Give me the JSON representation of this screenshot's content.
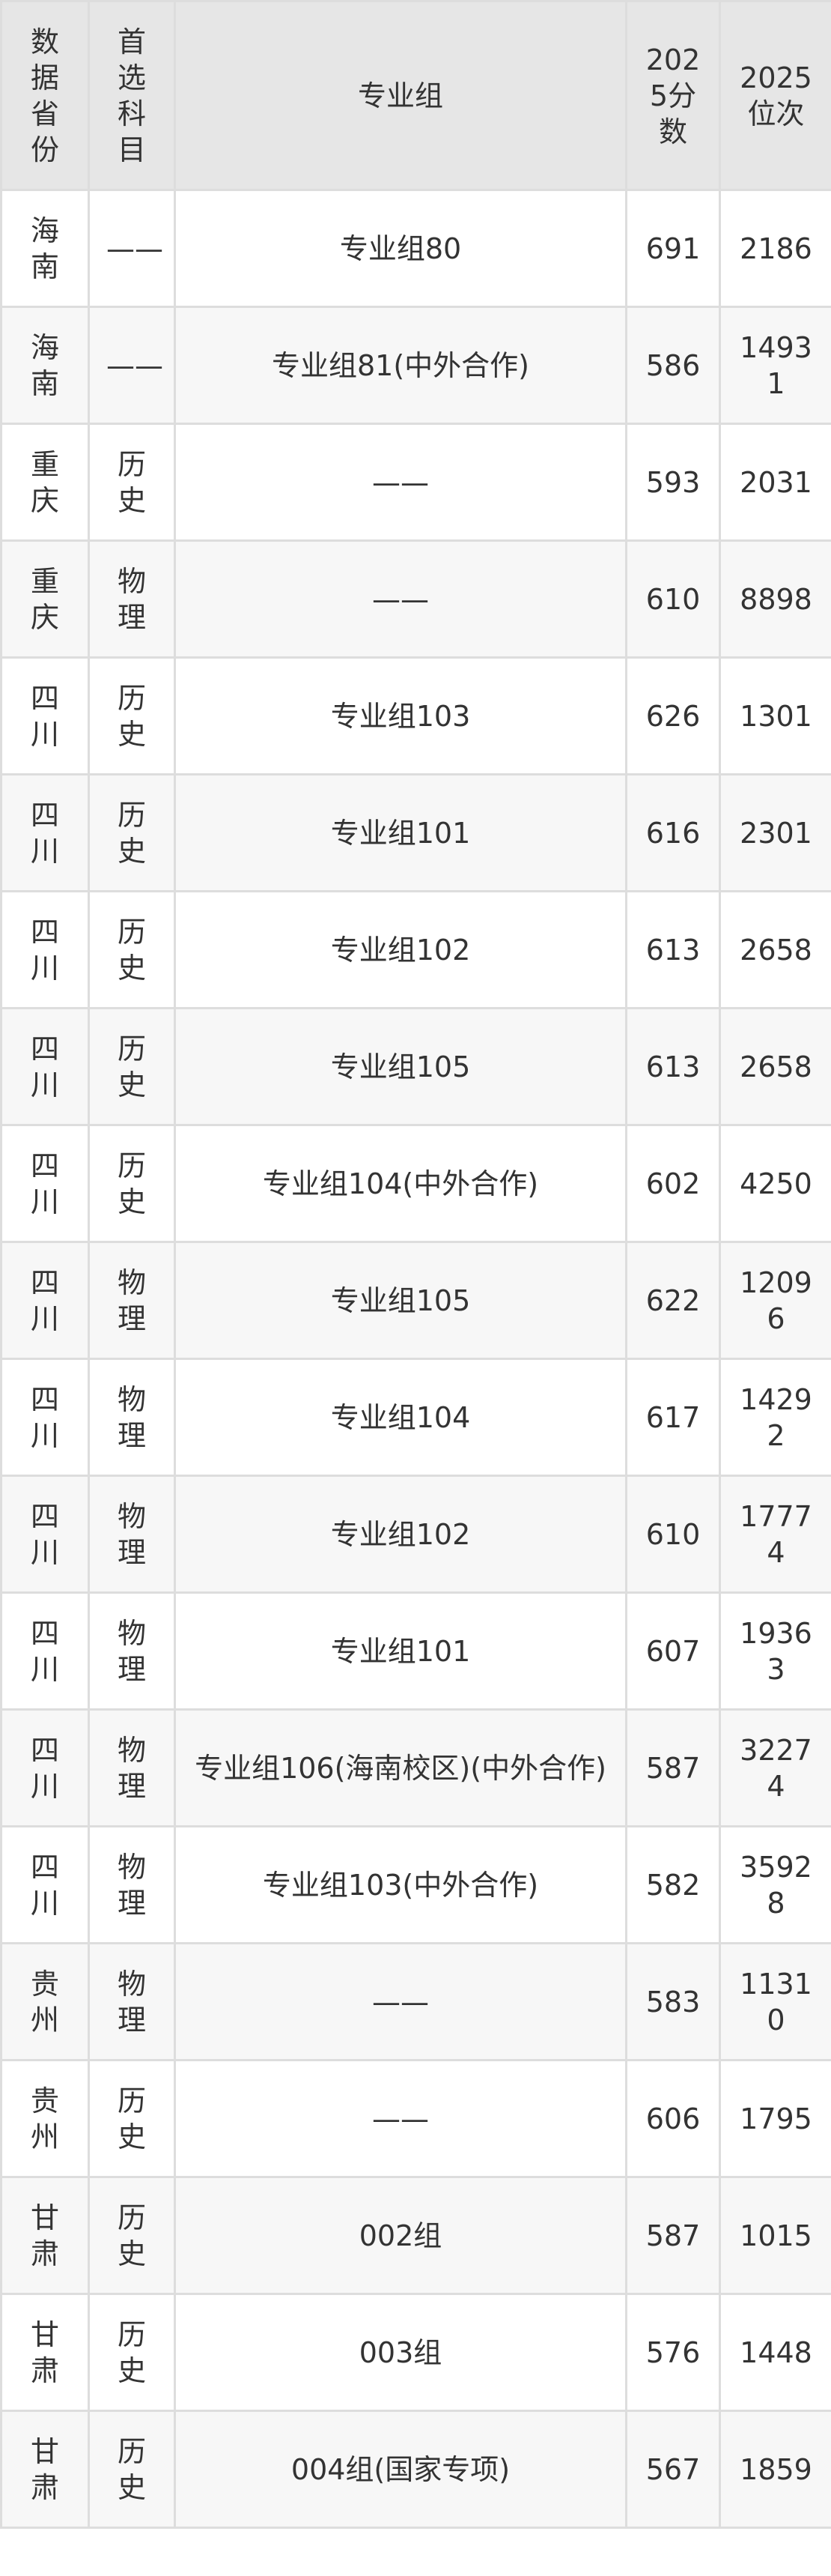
{
  "table": {
    "headers": [
      "数据省份",
      "首选科目",
      "专业组",
      "2025分数",
      "2025位次"
    ],
    "rows": [
      [
        "海南",
        "——",
        "专业组80",
        "691",
        "2186"
      ],
      [
        "海南",
        "——",
        "专业组81(中外合作)",
        "586",
        "14931"
      ],
      [
        "重庆",
        "历史",
        "——",
        "593",
        "2031"
      ],
      [
        "重庆",
        "物理",
        "——",
        "610",
        "8898"
      ],
      [
        "四川",
        "历史",
        "专业组103",
        "626",
        "1301"
      ],
      [
        "四川",
        "历史",
        "专业组101",
        "616",
        "2301"
      ],
      [
        "四川",
        "历史",
        "专业组102",
        "613",
        "2658"
      ],
      [
        "四川",
        "历史",
        "专业组105",
        "613",
        "2658"
      ],
      [
        "四川",
        "历史",
        "专业组104(中外合作)",
        "602",
        "4250"
      ],
      [
        "四川",
        "物理",
        "专业组105",
        "622",
        "12096"
      ],
      [
        "四川",
        "物理",
        "专业组104",
        "617",
        "14292"
      ],
      [
        "四川",
        "物理",
        "专业组102",
        "610",
        "17774"
      ],
      [
        "四川",
        "物理",
        "专业组101",
        "607",
        "19363"
      ],
      [
        "四川",
        "物理",
        "专业组106(海南校区)(中外合作)",
        "587",
        "32274"
      ],
      [
        "四川",
        "物理",
        "专业组103(中外合作)",
        "582",
        "35928"
      ],
      [
        "贵州",
        "物理",
        "——",
        "583",
        "11310"
      ],
      [
        "贵州",
        "历史",
        "——",
        "606",
        "1795"
      ],
      [
        "甘肃",
        "历史",
        "002组",
        "587",
        "1015"
      ],
      [
        "甘肃",
        "历史",
        "003组",
        "576",
        "1448"
      ],
      [
        "甘肃",
        "历史",
        "004组(国家专项)",
        "567",
        "1859"
      ]
    ]
  }
}
